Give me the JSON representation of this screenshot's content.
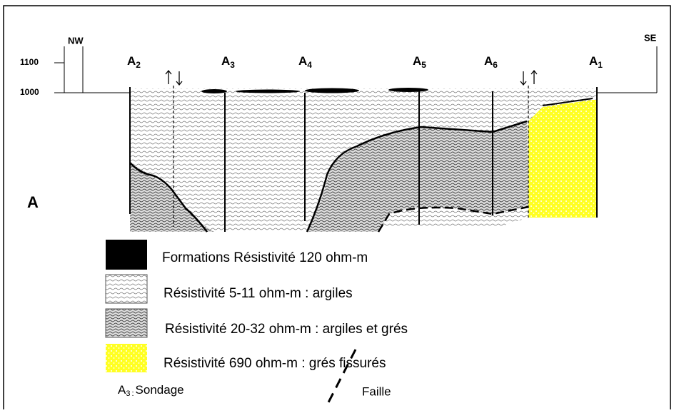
{
  "axis": {
    "left_label": "NW",
    "right_label": "SE",
    "ticks": [
      1100,
      1000
    ]
  },
  "section_label": "A",
  "soundings": [
    {
      "letter": "A",
      "index": "2"
    },
    {
      "letter": "A",
      "index": "3"
    },
    {
      "letter": "A",
      "index": "4"
    },
    {
      "letter": "A",
      "index": "5"
    },
    {
      "letter": "A",
      "index": "6"
    },
    {
      "letter": "A",
      "index": "1"
    }
  ],
  "legend": [
    "Formations  Résistivité 120 ohm-m",
    "Résistivité 5-11 ohm-m : argiles",
    "Résistivité 20-32 ohm-m : argiles et grés",
    "Résistivité 690 ohm-m : grés fissurés"
  ],
  "sondage_key": {
    "letter": "A",
    "index": "3",
    "separator": ":",
    "text": "Sondage"
  },
  "fault_key": "Faille"
}
